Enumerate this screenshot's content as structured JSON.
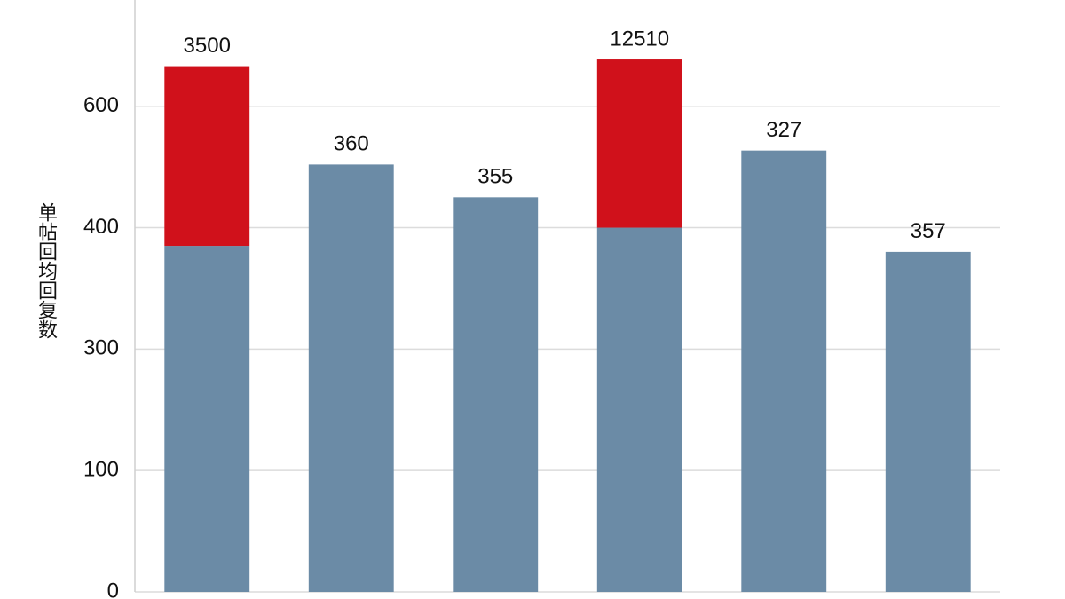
{
  "chart_data": {
    "type": "bar",
    "y_label": "单帖回均回复数",
    "categories": [
      null,
      null,
      null,
      null,
      null,
      null
    ],
    "series": [
      {
        "color": "#6b8ba6",
        "values": [
          385,
          504,
          450,
          400,
          527,
          380
        ]
      },
      {
        "color": "#d0111b",
        "values": [
          281,
          null,
          null,
          277,
          null,
          null
        ]
      }
    ],
    "bar_labels": [
      "3500",
      "360",
      "355",
      "12510",
      "327",
      "357"
    ],
    "stacked": true,
    "ylim": [
      0,
      775
    ],
    "yticks": [
      0,
      100,
      300,
      400,
      600
    ],
    "grid": true
  }
}
